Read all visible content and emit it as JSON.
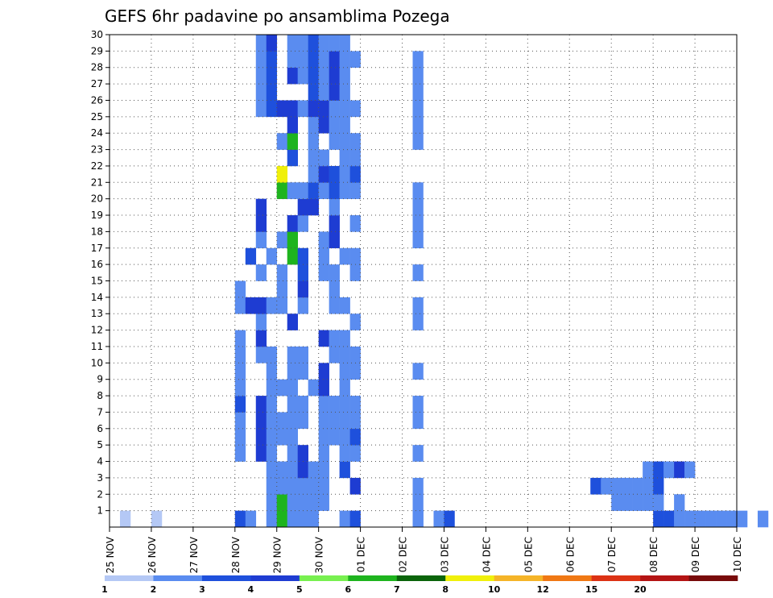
{
  "chart_data": {
    "type": "heatmap",
    "title": "GEFS 6hr padavine po ansamblima Pozega",
    "x_tick_labels": [
      "25 NOV",
      "26 NOV",
      "27 NOV",
      "28 NOV",
      "29 NOV",
      "30 NOV",
      "01 DEC",
      "02 DEC",
      "03 DEC",
      "04 DEC",
      "05 DEC",
      "06 DEC",
      "07 DEC",
      "08 DEC",
      "09 DEC",
      "10 DEC"
    ],
    "xlim": [
      "25 NOV 00Z",
      "10 DEC 00Z"
    ],
    "time_step_hours": 6,
    "y_tick_labels": [
      "1",
      "2",
      "3",
      "4",
      "5",
      "6",
      "7",
      "8",
      "9",
      "10",
      "11",
      "12",
      "13",
      "14",
      "15",
      "16",
      "17",
      "18",
      "19",
      "20",
      "21",
      "22",
      "23",
      "24",
      "25",
      "26",
      "27",
      "28",
      "29",
      "30"
    ],
    "ylim": [
      0,
      30
    ],
    "grid": true,
    "colorbar": {
      "placement": "bottom",
      "levels": [
        "1",
        "2",
        "3",
        "4",
        "5",
        "6",
        "7",
        "8",
        "10",
        "12",
        "15",
        "20"
      ],
      "colors": [
        "#b4c8f5",
        "#5a8cf0",
        "#1e50dc",
        "#1e3cd2",
        "#78f050",
        "#1eb41e",
        "#0a640a",
        "#f0f00a",
        "#f5b428",
        "#f07814",
        "#dc3214",
        "#b41414",
        "#780a0a"
      ]
    },
    "cells": [
      [
        1,
        0,
        0
      ],
      [
        4,
        0,
        0
      ],
      [
        12,
        0,
        2
      ],
      [
        13,
        0,
        1
      ],
      [
        29,
        0,
        1
      ],
      [
        31,
        0,
        1
      ],
      [
        32,
        0,
        2
      ],
      [
        52,
        0,
        2
      ],
      [
        53,
        0,
        2
      ],
      [
        54,
        0,
        1
      ],
      [
        55,
        0,
        1
      ],
      [
        56,
        0,
        1
      ],
      [
        57,
        0,
        1
      ],
      [
        58,
        0,
        1
      ],
      [
        59,
        0,
        1
      ],
      [
        60,
        0,
        1
      ],
      [
        62,
        0,
        1
      ],
      [
        48,
        1,
        1
      ],
      [
        49,
        1,
        1
      ],
      [
        50,
        1,
        1
      ],
      [
        51,
        1,
        1
      ],
      [
        52,
        1,
        1
      ],
      [
        54,
        1,
        1
      ],
      [
        46,
        2,
        2
      ],
      [
        47,
        2,
        1
      ],
      [
        48,
        2,
        1
      ],
      [
        49,
        2,
        1
      ],
      [
        50,
        2,
        1
      ],
      [
        51,
        2,
        1
      ],
      [
        52,
        2,
        2
      ],
      [
        51,
        3,
        1
      ],
      [
        52,
        3,
        2
      ],
      [
        53,
        3,
        1
      ],
      [
        54,
        3,
        3
      ],
      [
        55,
        3,
        1
      ],
      [
        12,
        4,
        1
      ],
      [
        12,
        5,
        1
      ],
      [
        12,
        6,
        1
      ],
      [
        12,
        7,
        2
      ],
      [
        12,
        8,
        1
      ],
      [
        12,
        9,
        1
      ],
      [
        12,
        10,
        1
      ],
      [
        12,
        11,
        1
      ],
      [
        12,
        13,
        1
      ],
      [
        12,
        14,
        1
      ],
      [
        13,
        13,
        3
      ],
      [
        13,
        16,
        2
      ],
      [
        14,
        4,
        3
      ],
      [
        14,
        5,
        3
      ],
      [
        14,
        6,
        3
      ],
      [
        14,
        7,
        3
      ],
      [
        14,
        10,
        1
      ],
      [
        14,
        11,
        3
      ],
      [
        14,
        12,
        1
      ],
      [
        14,
        13,
        3
      ],
      [
        14,
        15,
        1
      ],
      [
        14,
        17,
        1
      ],
      [
        14,
        18,
        3
      ],
      [
        14,
        19,
        3
      ],
      [
        14,
        25,
        1
      ],
      [
        14,
        26,
        1
      ],
      [
        14,
        27,
        1
      ],
      [
        14,
        28,
        1
      ],
      [
        14,
        29,
        1
      ],
      [
        15,
        0,
        1
      ],
      [
        15,
        1,
        1
      ],
      [
        15,
        2,
        1
      ],
      [
        15,
        3,
        1
      ],
      [
        15,
        4,
        1
      ],
      [
        15,
        5,
        1
      ],
      [
        15,
        6,
        1
      ],
      [
        15,
        7,
        1
      ],
      [
        15,
        8,
        1
      ],
      [
        15,
        9,
        1
      ],
      [
        15,
        10,
        1
      ],
      [
        15,
        13,
        1
      ],
      [
        15,
        16,
        1
      ],
      [
        15,
        25,
        2
      ],
      [
        15,
        26,
        2
      ],
      [
        15,
        27,
        2
      ],
      [
        15,
        28,
        2
      ],
      [
        15,
        29,
        3
      ],
      [
        16,
        0,
        5
      ],
      [
        16,
        1,
        5
      ],
      [
        16,
        2,
        1
      ],
      [
        16,
        3,
        1
      ],
      [
        16,
        5,
        1
      ],
      [
        16,
        6,
        1
      ],
      [
        16,
        8,
        1
      ],
      [
        16,
        13,
        1
      ],
      [
        16,
        14,
        1
      ],
      [
        16,
        15,
        1
      ],
      [
        16,
        17,
        1
      ],
      [
        16,
        20,
        5
      ],
      [
        16,
        21,
        7
      ],
      [
        16,
        23,
        1
      ],
      [
        16,
        25,
        3
      ],
      [
        17,
        0,
        1
      ],
      [
        17,
        1,
        1
      ],
      [
        17,
        2,
        1
      ],
      [
        17,
        3,
        1
      ],
      [
        17,
        4,
        1
      ],
      [
        17,
        5,
        1
      ],
      [
        17,
        6,
        1
      ],
      [
        17,
        7,
        1
      ],
      [
        17,
        8,
        1
      ],
      [
        17,
        9,
        1
      ],
      [
        17,
        10,
        1
      ],
      [
        17,
        12,
        3
      ],
      [
        17,
        16,
        5
      ],
      [
        17,
        17,
        5
      ],
      [
        17,
        18,
        3
      ],
      [
        17,
        20,
        1
      ],
      [
        17,
        22,
        2
      ],
      [
        17,
        23,
        5
      ],
      [
        17,
        24,
        3
      ],
      [
        17,
        25,
        3
      ],
      [
        17,
        27,
        3
      ],
      [
        17,
        28,
        1
      ],
      [
        17,
        29,
        1
      ],
      [
        18,
        0,
        1
      ],
      [
        18,
        1,
        1
      ],
      [
        18,
        2,
        1
      ],
      [
        18,
        3,
        3
      ],
      [
        18,
        4,
        3
      ],
      [
        18,
        6,
        1
      ],
      [
        18,
        7,
        1
      ],
      [
        18,
        9,
        1
      ],
      [
        18,
        10,
        1
      ],
      [
        18,
        13,
        1
      ],
      [
        18,
        14,
        3
      ],
      [
        18,
        15,
        2
      ],
      [
        18,
        16,
        2
      ],
      [
        18,
        18,
        1
      ],
      [
        18,
        19,
        3
      ],
      [
        18,
        20,
        1
      ],
      [
        18,
        25,
        1
      ],
      [
        18,
        27,
        1
      ],
      [
        18,
        28,
        1
      ],
      [
        18,
        29,
        1
      ],
      [
        19,
        0,
        1
      ],
      [
        19,
        1,
        1
      ],
      [
        19,
        2,
        1
      ],
      [
        19,
        3,
        1
      ],
      [
        19,
        8,
        1
      ],
      [
        19,
        19,
        3
      ],
      [
        19,
        20,
        2
      ],
      [
        19,
        21,
        1
      ],
      [
        19,
        22,
        1
      ],
      [
        19,
        23,
        1
      ],
      [
        19,
        24,
        1
      ],
      [
        19,
        25,
        3
      ],
      [
        19,
        26,
        2
      ],
      [
        19,
        27,
        2
      ],
      [
        19,
        28,
        2
      ],
      [
        19,
        29,
        2
      ],
      [
        20,
        1,
        1
      ],
      [
        20,
        2,
        1
      ],
      [
        20,
        3,
        1
      ],
      [
        20,
        4,
        1
      ],
      [
        20,
        5,
        1
      ],
      [
        20,
        6,
        1
      ],
      [
        20,
        7,
        1
      ],
      [
        20,
        8,
        3
      ],
      [
        20,
        9,
        3
      ],
      [
        20,
        11,
        3
      ],
      [
        20,
        15,
        1
      ],
      [
        20,
        16,
        1
      ],
      [
        20,
        17,
        1
      ],
      [
        20,
        20,
        1
      ],
      [
        20,
        21,
        3
      ],
      [
        20,
        22,
        1
      ],
      [
        20,
        24,
        3
      ],
      [
        20,
        25,
        3
      ],
      [
        20,
        26,
        1
      ],
      [
        20,
        27,
        1
      ],
      [
        20,
        28,
        1
      ],
      [
        20,
        29,
        1
      ],
      [
        21,
        5,
        1
      ],
      [
        21,
        6,
        1
      ],
      [
        21,
        7,
        1
      ],
      [
        21,
        10,
        1
      ],
      [
        21,
        11,
        1
      ],
      [
        21,
        13,
        1
      ],
      [
        21,
        14,
        1
      ],
      [
        21,
        15,
        1
      ],
      [
        21,
        17,
        3
      ],
      [
        21,
        18,
        3
      ],
      [
        21,
        19,
        1
      ],
      [
        21,
        20,
        2
      ],
      [
        21,
        21,
        2
      ],
      [
        21,
        23,
        1
      ],
      [
        21,
        24,
        1
      ],
      [
        21,
        25,
        1
      ],
      [
        21,
        26,
        3
      ],
      [
        21,
        27,
        3
      ],
      [
        21,
        28,
        3
      ],
      [
        21,
        29,
        1
      ],
      [
        22,
        0,
        1
      ],
      [
        22,
        3,
        2
      ],
      [
        22,
        4,
        1
      ],
      [
        22,
        5,
        1
      ],
      [
        22,
        6,
        1
      ],
      [
        22,
        7,
        1
      ],
      [
        22,
        8,
        1
      ],
      [
        22,
        9,
        1
      ],
      [
        22,
        10,
        1
      ],
      [
        22,
        11,
        1
      ],
      [
        22,
        13,
        1
      ],
      [
        22,
        16,
        1
      ],
      [
        22,
        20,
        1
      ],
      [
        22,
        21,
        1
      ],
      [
        22,
        22,
        1
      ],
      [
        22,
        23,
        1
      ],
      [
        22,
        24,
        1
      ],
      [
        22,
        25,
        1
      ],
      [
        22,
        26,
        1
      ],
      [
        22,
        27,
        1
      ],
      [
        22,
        28,
        1
      ],
      [
        22,
        29,
        1
      ],
      [
        23,
        0,
        2
      ],
      [
        23,
        2,
        3
      ],
      [
        23,
        4,
        1
      ],
      [
        23,
        5,
        2
      ],
      [
        23,
        6,
        1
      ],
      [
        23,
        7,
        1
      ],
      [
        23,
        9,
        1
      ],
      [
        23,
        10,
        1
      ],
      [
        23,
        12,
        1
      ],
      [
        23,
        15,
        1
      ],
      [
        23,
        16,
        1
      ],
      [
        23,
        18,
        1
      ],
      [
        23,
        20,
        1
      ],
      [
        23,
        21,
        2
      ],
      [
        23,
        22,
        1
      ],
      [
        23,
        23,
        1
      ],
      [
        23,
        25,
        1
      ],
      [
        23,
        28,
        1
      ],
      [
        29,
        0,
        1
      ],
      [
        29,
        1,
        1
      ],
      [
        29,
        2,
        1
      ],
      [
        29,
        4,
        1
      ],
      [
        29,
        6,
        1
      ],
      [
        29,
        7,
        1
      ],
      [
        29,
        9,
        1
      ],
      [
        29,
        12,
        1
      ],
      [
        29,
        13,
        1
      ],
      [
        29,
        15,
        1
      ],
      [
        29,
        17,
        1
      ],
      [
        29,
        18,
        1
      ],
      [
        29,
        19,
        1
      ],
      [
        29,
        20,
        1
      ],
      [
        29,
        23,
        1
      ],
      [
        29,
        24,
        1
      ],
      [
        29,
        25,
        1
      ],
      [
        29,
        26,
        1
      ],
      [
        29,
        27,
        1
      ],
      [
        29,
        28,
        1
      ]
    ]
  }
}
